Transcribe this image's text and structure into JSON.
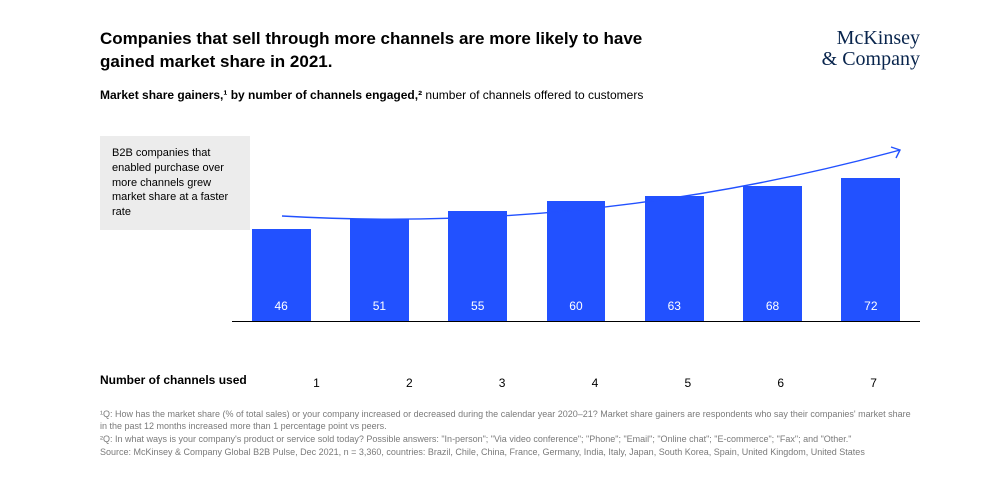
{
  "header": {
    "title": "Companies that sell through more channels are more likely to have gained market share in 2021.",
    "logo_line1": "McKinsey",
    "logo_line2": "& Company"
  },
  "subtitle": {
    "bold": "Market share gainers,¹ by number of channels engaged,²",
    "rest": " number of channels offered to customers"
  },
  "callout": "B2B companies that enabled purchase over more channels grew market share at a faster rate",
  "chart": {
    "type": "bar",
    "categories": [
      "1",
      "2",
      "3",
      "4",
      "5",
      "6",
      "7"
    ],
    "values": [
      46,
      51,
      55,
      60,
      63,
      68,
      72
    ],
    "bar_color": "#2251ff",
    "value_text_color": "#ffffff",
    "axis_line_color": "#000000",
    "arrow_color": "#2251ff",
    "ylim_max": 100,
    "bar_width_pct": 60,
    "value_fontsize": 12,
    "xlabel_fontsize": 12,
    "x_axis_title": "Number of channels used",
    "background_color": "#ffffff",
    "callout_bg": "#ececec"
  },
  "footnotes": {
    "f1": "¹Q: How has the market share (% of total sales) or your company increased or decreased during the calendar year 2020–21? Market share gainers are respondents who say their companies' market share in the past 12 months increased more than 1 percentage point vs peers.",
    "f2": "²Q: In what ways is your company's product or service sold today? Possible answers: \"In-person\"; \"Via video conference\"; \"Phone\"; \"Email\"; \"Online chat\"; \"E-commerce\"; \"Fax\"; and \"Other.\"",
    "source": "Source: McKinsey & Company Global B2B Pulse, Dec 2021, n = 3,360, countries: Brazil, Chile, China, France, Germany, India, Italy, Japan, South Korea, Spain, United Kingdom, United States"
  }
}
